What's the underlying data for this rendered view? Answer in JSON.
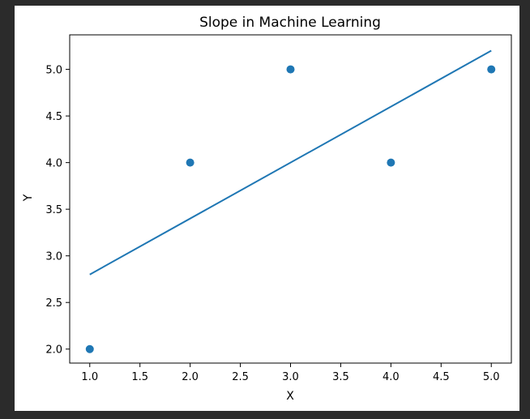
{
  "chart_data": {
    "type": "scatter",
    "title": "Slope in Machine Learning",
    "xlabel": "X",
    "ylabel": "Y",
    "xlim": [
      0.8,
      5.2
    ],
    "ylim": [
      1.85,
      5.37
    ],
    "grid": false,
    "xticks": [
      1.0,
      1.5,
      2.0,
      2.5,
      3.0,
      3.5,
      4.0,
      4.5,
      5.0
    ],
    "xtick_labels": [
      "1.0",
      "1.5",
      "2.0",
      "2.5",
      "3.0",
      "3.5",
      "4.0",
      "4.5",
      "5.0"
    ],
    "yticks": [
      2.0,
      2.5,
      3.0,
      3.5,
      4.0,
      4.5,
      5.0
    ],
    "ytick_labels": [
      "2.0",
      "2.5",
      "3.0",
      "3.5",
      "4.0",
      "4.5",
      "5.0"
    ],
    "series": [
      {
        "kind": "scatter",
        "x": [
          1,
          2,
          3,
          4,
          5
        ],
        "y": [
          2,
          4,
          5,
          4,
          5
        ],
        "color": "#1f77b4"
      },
      {
        "kind": "line",
        "x": [
          1,
          5
        ],
        "y": [
          2.8,
          5.2
        ],
        "color": "#1f77b4"
      }
    ]
  }
}
